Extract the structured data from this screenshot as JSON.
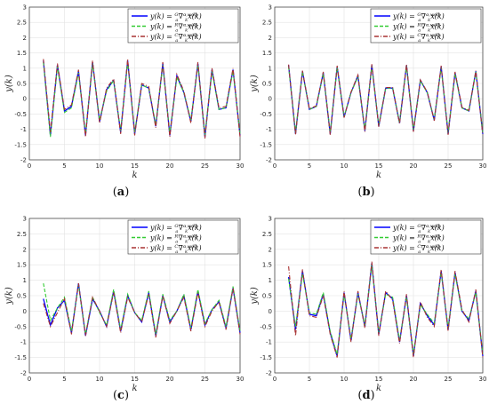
{
  "chart_data": [
    {
      "type": "line",
      "panel": "(a)",
      "caption_label": "a",
      "xlabel": "k",
      "ylabel": "y(k)",
      "xlim": [
        0,
        30
      ],
      "ylim": [
        -2,
        3
      ],
      "xticks": [
        0,
        5,
        10,
        15,
        20,
        25,
        30
      ],
      "yticks": [
        -2,
        -1.5,
        -1,
        -0.5,
        0,
        0.5,
        1,
        1.5,
        2,
        2.5,
        3
      ],
      "grid": true,
      "legend_position": "top-right",
      "x": [
        2,
        3,
        4,
        5,
        6,
        7,
        8,
        9,
        10,
        11,
        12,
        13,
        14,
        15,
        16,
        17,
        18,
        19,
        20,
        21,
        22,
        23,
        24,
        25,
        26,
        27,
        28,
        29,
        30
      ],
      "series": [
        {
          "name": "G",
          "color": "#0000ff",
          "style": "solid",
          "values": [
            1.25,
            -1.2,
            1.1,
            -0.4,
            -0.25,
            0.9,
            -1.2,
            1.2,
            -0.75,
            0.3,
            0.6,
            -1.1,
            1.25,
            -1.15,
            0.45,
            0.35,
            -0.9,
            1.15,
            -1.2,
            0.75,
            0.2,
            -0.75,
            1.15,
            -1.25,
            0.95,
            -0.35,
            -0.3,
            0.95,
            -1.2
          ]
        },
        {
          "name": "R",
          "color": "#33cc33",
          "style": "dashed",
          "values": [
            1.2,
            -1.25,
            1.05,
            -0.45,
            -0.3,
            0.85,
            -1.15,
            1.15,
            -0.7,
            0.25,
            0.6,
            -1.05,
            1.2,
            -1.1,
            0.45,
            0.35,
            -0.85,
            1.1,
            -1.15,
            0.7,
            0.2,
            -0.7,
            1.1,
            -1.2,
            0.9,
            -0.35,
            -0.3,
            0.9,
            -1.15
          ]
        },
        {
          "name": "C",
          "color": "#a83232",
          "style": "dashdot",
          "values": [
            1.3,
            -1.1,
            1.15,
            -0.35,
            -0.2,
            0.95,
            -1.25,
            1.25,
            -0.8,
            0.35,
            0.65,
            -1.15,
            1.3,
            -1.2,
            0.5,
            0.4,
            -0.95,
            1.2,
            -1.25,
            0.8,
            0.25,
            -0.8,
            1.2,
            -1.3,
            1.0,
            -0.3,
            -0.25,
            1.0,
            -1.25
          ]
        }
      ]
    },
    {
      "type": "line",
      "panel": "(b)",
      "caption_label": "b",
      "xlabel": "k",
      "ylabel": "y(k)",
      "xlim": [
        0,
        30
      ],
      "ylim": [
        -2,
        3
      ],
      "xticks": [
        0,
        5,
        10,
        15,
        20,
        25,
        30
      ],
      "yticks": [
        -2,
        -1.5,
        -1,
        -0.5,
        0,
        0.5,
        1,
        1.5,
        2,
        2.5,
        3
      ],
      "grid": true,
      "legend_position": "top-right",
      "x": [
        2,
        3,
        4,
        5,
        6,
        7,
        8,
        9,
        10,
        11,
        12,
        13,
        14,
        15,
        16,
        17,
        18,
        19,
        20,
        21,
        22,
        23,
        24,
        25,
        26,
        27,
        28,
        29,
        30
      ],
      "series": [
        {
          "name": "G",
          "color": "#0000ff",
          "style": "solid",
          "values": [
            1.1,
            -1.15,
            0.9,
            -0.35,
            -0.25,
            0.85,
            -1.15,
            1.05,
            -0.6,
            0.2,
            0.75,
            -1.05,
            1.1,
            -0.9,
            0.35,
            0.35,
            -0.8,
            1.1,
            -1.05,
            0.6,
            0.2,
            -0.7,
            1.05,
            -1.15,
            0.85,
            -0.3,
            -0.4,
            0.9,
            -1.15
          ]
        },
        {
          "name": "R",
          "color": "#33cc33",
          "style": "dashed",
          "values": [
            1.05,
            -1.1,
            0.88,
            -0.35,
            -0.25,
            0.82,
            -1.1,
            1.02,
            -0.58,
            0.2,
            0.72,
            -1.02,
            1.07,
            -0.88,
            0.35,
            0.35,
            -0.78,
            1.07,
            -1.02,
            0.58,
            0.2,
            -0.68,
            1.02,
            -1.12,
            0.82,
            -0.3,
            -0.4,
            0.88,
            -1.12
          ]
        },
        {
          "name": "C",
          "color": "#a83232",
          "style": "dashdot",
          "values": [
            1.12,
            -1.18,
            0.92,
            -0.33,
            -0.23,
            0.88,
            -1.18,
            1.08,
            -0.62,
            0.22,
            0.78,
            -1.08,
            1.13,
            -0.92,
            0.37,
            0.37,
            -0.82,
            1.13,
            -1.08,
            0.62,
            0.22,
            -0.72,
            1.08,
            -1.18,
            0.88,
            -0.28,
            -0.38,
            0.92,
            -1.18
          ]
        }
      ]
    },
    {
      "type": "line",
      "panel": "(c)",
      "caption_label": "c",
      "xlabel": "k",
      "ylabel": "y(k)",
      "xlim": [
        0,
        30
      ],
      "ylim": [
        -2,
        3
      ],
      "xticks": [
        0,
        5,
        10,
        15,
        20,
        25,
        30
      ],
      "yticks": [
        -2,
        -1.5,
        -1,
        -0.5,
        0,
        0.5,
        1,
        1.5,
        2,
        2.5,
        3
      ],
      "grid": true,
      "legend_position": "top-right",
      "x": [
        2,
        3,
        4,
        5,
        6,
        7,
        8,
        9,
        10,
        11,
        12,
        13,
        14,
        15,
        16,
        17,
        18,
        19,
        20,
        21,
        22,
        23,
        24,
        25,
        26,
        27,
        28,
        29,
        30
      ],
      "series": [
        {
          "name": "G",
          "color": "#0000ff",
          "style": "solid",
          "values": [
            0.4,
            -0.45,
            0.1,
            0.35,
            -0.7,
            0.9,
            -0.8,
            0.4,
            0.0,
            -0.5,
            0.65,
            -0.65,
            0.5,
            -0.05,
            -0.35,
            0.6,
            -0.8,
            0.5,
            -0.35,
            0.0,
            0.5,
            -0.6,
            0.65,
            -0.45,
            0.05,
            0.3,
            -0.55,
            0.75,
            -0.7
          ]
        },
        {
          "name": "R",
          "color": "#33cc33",
          "style": "dashed",
          "values": [
            0.9,
            -0.3,
            0.1,
            0.45,
            -0.65,
            0.85,
            -0.75,
            0.45,
            -0.05,
            -0.45,
            0.7,
            -0.6,
            0.55,
            -0.05,
            -0.3,
            0.65,
            -0.75,
            0.55,
            -0.3,
            0.0,
            0.55,
            -0.55,
            0.7,
            -0.4,
            0.05,
            0.35,
            -0.5,
            0.8,
            -0.65
          ]
        },
        {
          "name": "C",
          "color": "#a83232",
          "style": "dashdot",
          "values": [
            0.25,
            -0.5,
            -0.05,
            0.4,
            -0.75,
            0.9,
            -0.8,
            0.45,
            0.0,
            -0.5,
            0.6,
            -0.7,
            0.45,
            -0.05,
            -0.35,
            0.55,
            -0.85,
            0.5,
            -0.4,
            0.0,
            0.45,
            -0.65,
            0.6,
            -0.5,
            0.0,
            0.3,
            -0.6,
            0.75,
            -0.75
          ]
        }
      ]
    },
    {
      "type": "line",
      "panel": "(d)",
      "caption_label": "d",
      "xlabel": "k",
      "ylabel": "y(k)",
      "xlim": [
        0,
        30
      ],
      "ylim": [
        -2,
        3
      ],
      "xticks": [
        0,
        5,
        10,
        15,
        20,
        25,
        30
      ],
      "yticks": [
        -2,
        -1.5,
        -1,
        -0.5,
        0,
        0.5,
        1,
        1.5,
        2,
        2.5,
        3
      ],
      "grid": true,
      "legend_position": "top-right",
      "x": [
        2,
        3,
        4,
        5,
        6,
        7,
        8,
        9,
        10,
        11,
        12,
        13,
        14,
        15,
        16,
        17,
        18,
        19,
        20,
        21,
        22,
        23,
        24,
        25,
        26,
        27,
        28,
        29,
        30
      ],
      "series": [
        {
          "name": "G",
          "color": "#0000ff",
          "style": "solid",
          "values": [
            1.1,
            -0.6,
            1.3,
            -0.1,
            -0.15,
            0.55,
            -0.7,
            -1.45,
            0.6,
            -0.95,
            0.6,
            -0.5,
            1.55,
            -0.75,
            0.6,
            0.4,
            -1.0,
            0.5,
            -1.45,
            0.25,
            -0.15,
            -0.45,
            1.3,
            -0.6,
            1.25,
            0.0,
            -0.3,
            0.65,
            -1.45
          ]
        },
        {
          "name": "R",
          "color": "#33cc33",
          "style": "dashed",
          "values": [
            1.05,
            -0.5,
            1.2,
            -0.05,
            -0.1,
            0.6,
            -0.65,
            -1.4,
            0.55,
            -0.9,
            0.55,
            -0.45,
            1.5,
            -0.7,
            0.55,
            0.45,
            -0.95,
            0.45,
            -1.4,
            0.2,
            -0.1,
            -0.4,
            1.25,
            -0.55,
            1.2,
            0.0,
            -0.25,
            0.6,
            -1.4
          ]
        },
        {
          "name": "C",
          "color": "#a83232",
          "style": "dashdot",
          "values": [
            1.45,
            -0.8,
            1.35,
            -0.15,
            -0.2,
            0.5,
            -0.75,
            -1.5,
            0.65,
            -1.0,
            0.65,
            -0.55,
            1.6,
            -0.8,
            0.65,
            0.35,
            -1.05,
            0.55,
            -1.5,
            0.3,
            -0.2,
            -0.5,
            1.35,
            -0.65,
            1.3,
            0.05,
            -0.35,
            0.7,
            -1.5
          ]
        }
      ]
    }
  ],
  "legend": {
    "entries": [
      {
        "key": "G",
        "color": "#0000ff",
        "style": "solid",
        "text_lhs": "y(k) = ",
        "sup": "G",
        "sub": "a",
        "op": "∇",
        "op_sup": "α,w(k)",
        "op_sub": "k",
        "text_rhs": "x(k)"
      },
      {
        "key": "R",
        "color": "#33cc33",
        "style": "dashed",
        "text_lhs": "y(k) = ",
        "sup": "R",
        "sub": "a",
        "op": "∇",
        "op_sup": "α,w(k)",
        "op_sub": "k",
        "text_rhs": "x(k)"
      },
      {
        "key": "C",
        "color": "#a83232",
        "style": "dashdot",
        "text_lhs": "y(k) = ",
        "sup": "C",
        "sub": "a",
        "op": "∇",
        "op_sup": "α,w(k)",
        "op_sub": "k",
        "text_rhs": "x(k)"
      }
    ]
  }
}
